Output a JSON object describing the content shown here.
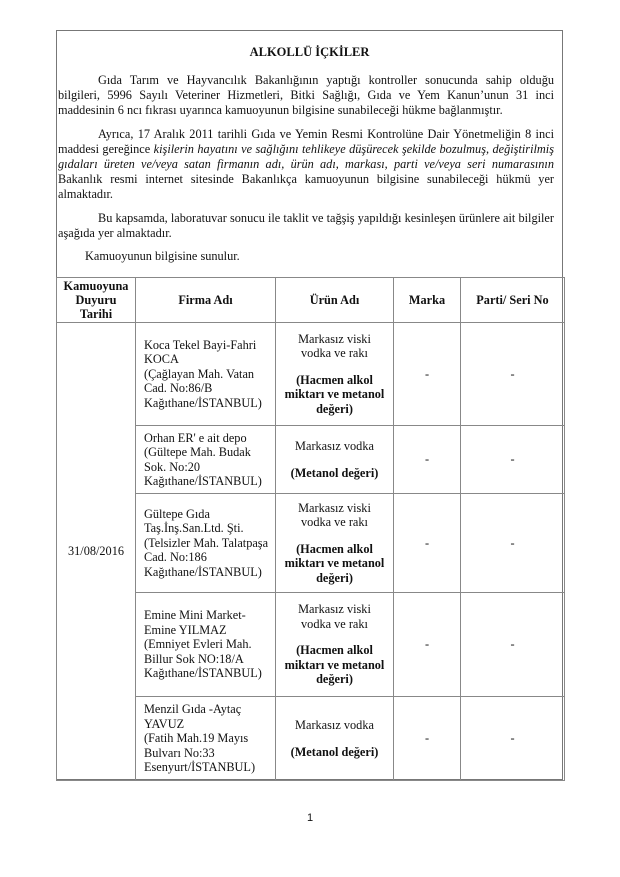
{
  "title": "ALKOLLÜ İÇKİLER",
  "paragraphs": {
    "p1": "Gıda Tarım ve Hayvancılık Bakanlığının yaptığı kontroller sonucunda sahip olduğu bilgileri, 5996 Sayılı Veteriner Hizmetleri, Bitki Sağlığı, Gıda ve Yem Kanun’unun 31 inci maddesinin 6 ncı fıkrası uyarınca kamuoyunun bilgisine sunabileceği hükme bağlanmıştır.",
    "p2_start": "Ayrıca, 17 Aralık 2011 tarihli Gıda ve Yemin Resmi Kontrolüne Dair Yönetmeliğin 8 inci maddesi gereğince ",
    "p2_italic": "kişilerin hayatını ve sağlığını tehlikeye düşürecek şekilde bozulmuş, değiştirilmiş gıdaları üreten ve/veya satan firmanın adı, ürün adı, markası, parti ve/veya seri numarasının",
    "p2_end": " Bakanlık resmi internet sitesinde Bakanlıkça kamuoyunun bilgisine sunabileceği hükmü yer almaktadır.",
    "p3": "Bu kapsamda,  laboratuvar sonucu ile taklit ve tağşiş yapıldığı kesinleşen ürünlere ait bilgiler aşağıda yer almaktadır.",
    "p4": "Kamuoyunun bilgisine sunulur."
  },
  "table": {
    "headers": [
      "Kamuoyuna\nDuyuru\nTarihi",
      "Firma Adı",
      "Ürün Adı",
      "Marka",
      "Parti/ Seri No"
    ],
    "date": "31/08/2016",
    "rows": [
      {
        "firma": "Koca Tekel Bayi-Fahri\nKOCA\n(Çağlayan Mah. Vatan\nCad. No:86/B\nKağıthane/İSTANBUL)",
        "urun": "Markasız viski\nvodka ve rakı",
        "not": "(Hacmen alkol\nmiktarı ve metanol\ndeğeri)",
        "marka": "-",
        "parti": "-"
      },
      {
        "firma": "Orhan ER' e ait depo\n(Gültepe Mah. Budak\nSok. No:20\nKağıthane/İSTANBUL)",
        "urun": "Markasız vodka",
        "not": "(Metanol değeri)",
        "marka": "-",
        "parti": "-"
      },
      {
        "firma": "Gültepe Gıda\nTaş.İnş.San.Ltd. Şti.\n(Telsizler Mah. Talatpaşa\nCad. No:186\nKağıthane/İSTANBUL)",
        "urun": "Markasız viski\nvodka ve rakı",
        "not": "(Hacmen alkol\nmiktarı ve metanol\ndeğeri)",
        "marka": "-",
        "parti": "-"
      },
      {
        "firma": "Emine Mini Market-\nEmine YILMAZ\n(Emniyet Evleri Mah.\nBillur Sok NO:18/A\nKağıthane/İSTANBUL)",
        "urun": "Markasız viski\nvodka ve rakı",
        "not": "(Hacmen alkol\nmiktarı ve metanol\ndeğeri)",
        "marka": "-",
        "parti": "-"
      },
      {
        "firma": "Menzil Gıda -Aytaç\nYAVUZ\n(Fatih Mah.19 Mayıs\nBulvarı No:33\nEsenyurt/İSTANBUL)",
        "urun": "Markasız vodka",
        "not": "(Metanol değeri)",
        "marka": "-",
        "parti": "-"
      }
    ]
  },
  "page_number": "1"
}
